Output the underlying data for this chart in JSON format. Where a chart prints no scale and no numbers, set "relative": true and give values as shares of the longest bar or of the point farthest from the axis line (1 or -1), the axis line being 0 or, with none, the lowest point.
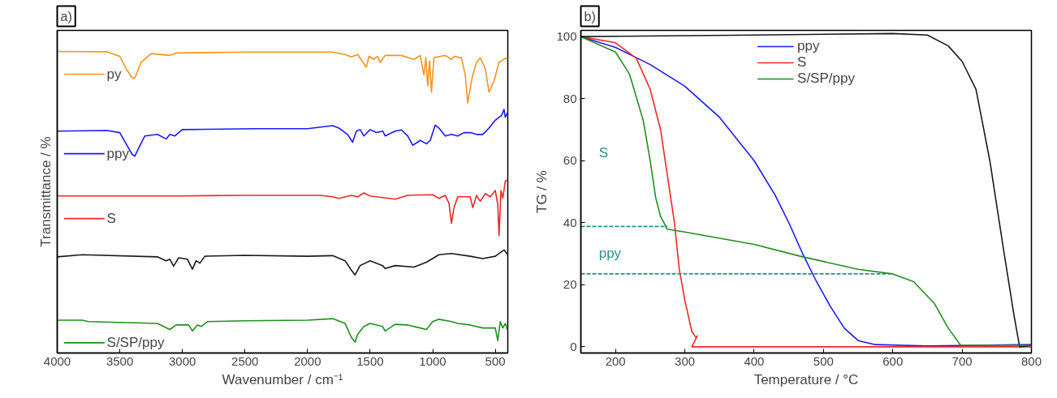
{
  "chart_data": [
    {
      "type": "line",
      "title": "a)",
      "xlabel": "Wavenumber / cm⁻¹",
      "ylabel": "Transmittance / %",
      "relative": true,
      "xlim": [
        4000,
        400
      ],
      "xticks": [
        4000,
        3500,
        3000,
        2500,
        2000,
        1500,
        1000,
        500
      ],
      "tick_labels": "x",
      "grid": false,
      "legend": "left",
      "marker": "none",
      "line_style": "solid",
      "series": [
        {
          "name": "py",
          "color": "#f7941d",
          "x": [
            4000,
            3600,
            3500,
            3450,
            3400,
            3380,
            3330,
            3250,
            3100,
            3050,
            2500,
            1800,
            1700,
            1650,
            1600,
            1530,
            1510,
            1470,
            1440,
            1420,
            1380,
            1250,
            1150,
            1100,
            1070,
            1055,
            1040,
            1025,
            1010,
            990,
            900,
            850,
            830,
            770,
            740,
            720,
            700,
            680,
            650,
            620,
            580,
            550,
            510,
            470,
            420,
            400
          ],
          "values": [
            1.0,
            0.999,
            0.984,
            0.943,
            0.912,
            0.912,
            0.964,
            0.993,
            0.987,
            0.995,
            0.998,
            0.998,
            0.99,
            0.982,
            0.99,
            0.948,
            0.984,
            0.974,
            0.984,
            0.964,
            0.987,
            0.987,
            0.974,
            0.987,
            0.922,
            0.98,
            0.886,
            0.969,
            0.865,
            0.98,
            0.987,
            0.974,
            0.984,
            0.979,
            0.922,
            0.829,
            0.881,
            0.922,
            0.964,
            0.979,
            0.943,
            0.865,
            0.902,
            0.964,
            0.977,
            0.977
          ]
        },
        {
          "name": "ppy",
          "color": "#1a1aff",
          "x": [
            4000,
            3600,
            3500,
            3450,
            3400,
            3380,
            3350,
            3300,
            3200,
            3130,
            3100,
            3060,
            3000,
            2400,
            2000,
            1800,
            1750,
            1680,
            1640,
            1610,
            1580,
            1550,
            1500,
            1450,
            1400,
            1380,
            1300,
            1250,
            1200,
            1160,
            1100,
            1050,
            1020,
            980,
            950,
            900,
            850,
            800,
            750,
            700,
            650,
            600,
            550,
            500,
            450,
            430,
            420,
            400
          ],
          "values": [
            0.736,
            0.738,
            0.731,
            0.694,
            0.658,
            0.653,
            0.679,
            0.72,
            0.725,
            0.71,
            0.725,
            0.72,
            0.741,
            0.744,
            0.744,
            0.754,
            0.746,
            0.725,
            0.699,
            0.736,
            0.741,
            0.72,
            0.741,
            0.731,
            0.736,
            0.72,
            0.736,
            0.74,
            0.72,
            0.689,
            0.705,
            0.694,
            0.705,
            0.756,
            0.746,
            0.72,
            0.725,
            0.72,
            0.731,
            0.731,
            0.725,
            0.725,
            0.746,
            0.772,
            0.788,
            0.808,
            0.782,
            0.798
          ]
        },
        {
          "name": "S",
          "color": "#f02828",
          "x": [
            4000,
            3000,
            2500,
            1900,
            1800,
            1750,
            1650,
            1600,
            1550,
            1500,
            1300,
            1200,
            1000,
            950,
            900,
            870,
            850,
            830,
            800,
            700,
            680,
            650,
            620,
            580,
            540,
            500,
            480,
            470,
            455,
            440,
            420,
            400
          ],
          "values": [
            0.521,
            0.521,
            0.523,
            0.523,
            0.518,
            0.513,
            0.523,
            0.518,
            0.531,
            0.521,
            0.51,
            0.523,
            0.525,
            0.513,
            0.523,
            0.497,
            0.43,
            0.482,
            0.518,
            0.518,
            0.482,
            0.523,
            0.503,
            0.529,
            0.518,
            0.539,
            0.492,
            0.389,
            0.539,
            0.513,
            0.57,
            0.575
          ]
        },
        {
          "color": "#1a1a1a",
          "x": [
            4000,
            3800,
            3200,
            3130,
            3100,
            3070,
            3030,
            2960,
            2920,
            2890,
            2860,
            2820,
            2500,
            2000,
            1800,
            1700,
            1650,
            1620,
            1580,
            1500,
            1400,
            1380,
            1300,
            1150,
            1050,
            950,
            850,
            700,
            600,
            500,
            430,
            400
          ],
          "values": [
            0.319,
            0.326,
            0.319,
            0.306,
            0.311,
            0.288,
            0.316,
            0.311,
            0.278,
            0.306,
            0.298,
            0.321,
            0.324,
            0.321,
            0.323,
            0.306,
            0.275,
            0.259,
            0.29,
            0.306,
            0.29,
            0.28,
            0.29,
            0.285,
            0.301,
            0.326,
            0.33,
            0.321,
            0.313,
            0.321,
            0.342,
            0.326
          ]
        },
        {
          "name": "S/SP/ppy",
          "color": "#1f8f1f",
          "x": [
            4000,
            3800,
            3750,
            3200,
            3100,
            3050,
            2950,
            2920,
            2880,
            2850,
            2800,
            2500,
            2000,
            1800,
            1700,
            1650,
            1620,
            1600,
            1550,
            1500,
            1400,
            1380,
            1300,
            1200,
            1100,
            1050,
            1000,
            950,
            850,
            800,
            700,
            600,
            500,
            480,
            460,
            440,
            420,
            400
          ],
          "values": [
            0.109,
            0.109,
            0.104,
            0.098,
            0.078,
            0.093,
            0.093,
            0.073,
            0.093,
            0.088,
            0.104,
            0.107,
            0.109,
            0.114,
            0.098,
            0.052,
            0.036,
            0.062,
            0.088,
            0.098,
            0.088,
            0.073,
            0.095,
            0.093,
            0.083,
            0.078,
            0.104,
            0.112,
            0.104,
            0.098,
            0.093,
            0.083,
            0.083,
            0.041,
            0.104,
            0.083,
            0.098,
            0.073
          ]
        }
      ]
    },
    {
      "type": "line",
      "title": "b)",
      "xlabel": "Temperature / °C",
      "ylabel": "TG / %",
      "xlim": [
        150,
        800
      ],
      "ylim": [
        -2,
        102
      ],
      "xticks": [
        200,
        300,
        400,
        500,
        600,
        700,
        800
      ],
      "yticks": [
        0,
        20,
        40,
        60,
        80,
        100
      ],
      "grid": false,
      "legend": "top",
      "marker": "none",
      "line_style": "solid",
      "annotations": [
        "S",
        "ppy"
      ],
      "series": [
        {
          "name": "ppy",
          "color": "#1a1aff",
          "x": [
            150,
            200,
            250,
            300,
            350,
            400,
            430,
            450,
            470,
            490,
            510,
            530,
            550,
            575,
            650,
            800
          ],
          "values": [
            100,
            96.5,
            91,
            84,
            74,
            60,
            49,
            40,
            30,
            21,
            13,
            6,
            2,
            0.7,
            0.3,
            0.7
          ]
        },
        {
          "name": "S",
          "color": "#f02828",
          "x": [
            150,
            200,
            230,
            250,
            265,
            275,
            285,
            292,
            300,
            310,
            316,
            318,
            310,
            800
          ],
          "values": [
            100,
            98,
            93,
            83,
            70,
            55,
            40,
            25,
            15,
            5,
            3,
            3.5,
            0,
            0
          ]
        },
        {
          "color": "#1a1a1a",
          "x": [
            150,
            400,
            600,
            650,
            680,
            700,
            720,
            740,
            760,
            775,
            783,
            800
          ],
          "values": [
            100,
            100.5,
            101,
            100.5,
            97,
            92,
            83,
            60,
            31,
            10,
            0,
            0.5
          ]
        },
        {
          "name": "S/SP/ppy",
          "color": "#1f8f1f",
          "x": [
            150,
            200,
            220,
            240,
            250,
            258,
            265,
            270,
            274,
            300,
            400,
            470,
            550,
            600,
            630,
            660,
            680,
            698,
            800
          ],
          "values": [
            100,
            95,
            88,
            73,
            60,
            48,
            42,
            40,
            38,
            37,
            33,
            29,
            25,
            23.5,
            21,
            14,
            6,
            0.5,
            0.5
          ]
        },
        {
          "type": "line",
          "color": "#2a8f8f",
          "line_style": "dashed",
          "x": [
            150,
            275
          ],
          "values": [
            38.8,
            38.8
          ]
        },
        {
          "type": "line",
          "color": "#2a8f8f",
          "line_style": "dashed",
          "x": [
            150,
            600
          ],
          "values": [
            23.5,
            23.5
          ]
        }
      ]
    }
  ]
}
